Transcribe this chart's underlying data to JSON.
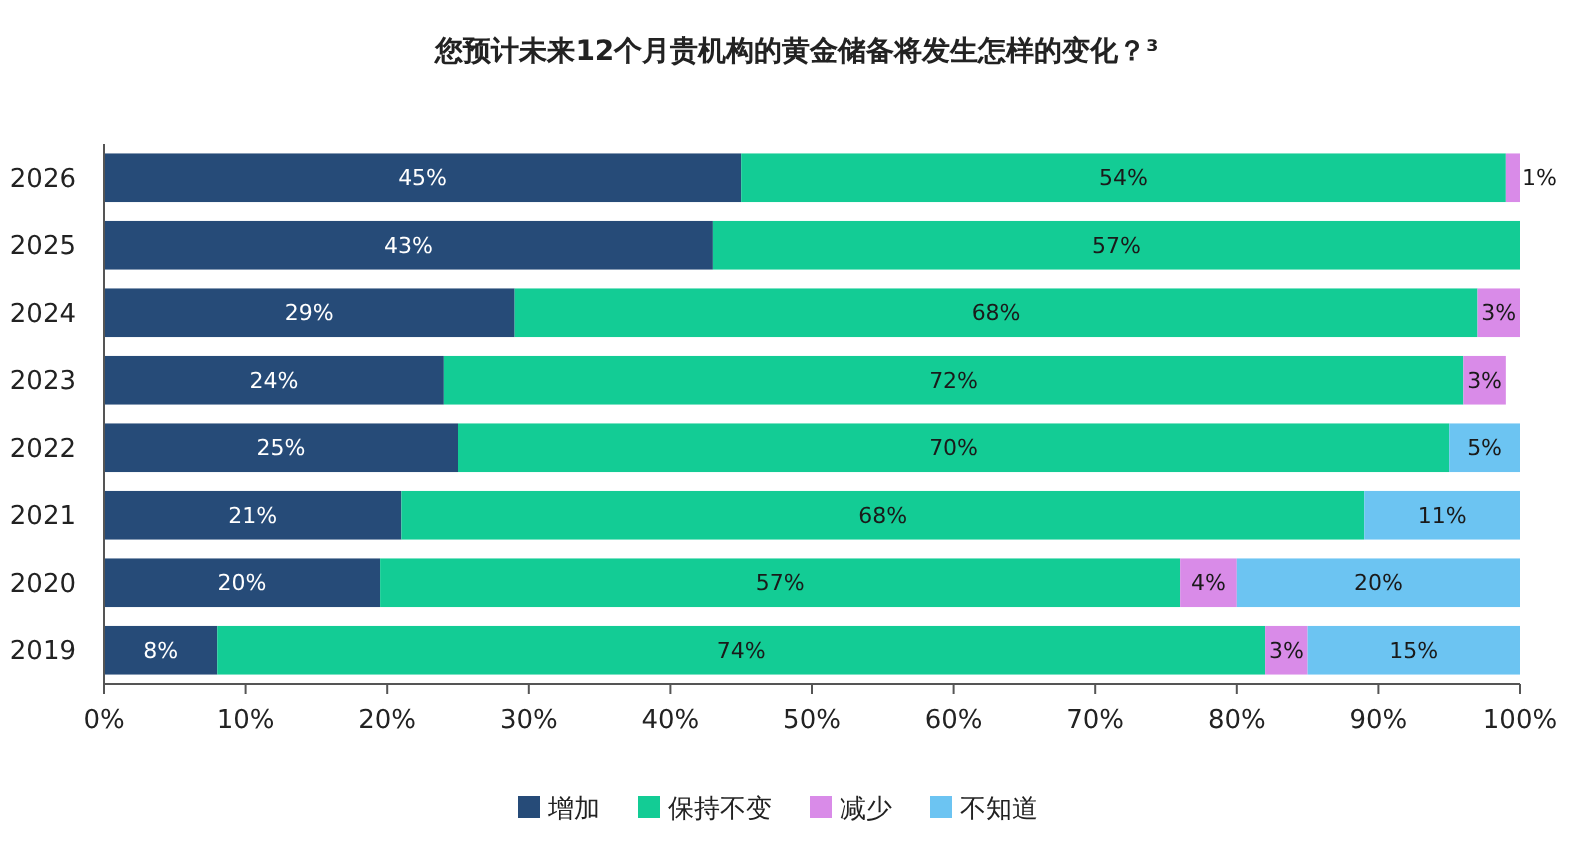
{
  "chart_data": {
    "type": "bar",
    "orientation": "horizontal",
    "stacked": true,
    "title": "您预计未来12个月贵机构的黄金储备将发生怎样的变化？³",
    "categories": [
      "2026",
      "2025",
      "2024",
      "2023",
      "2022",
      "2021",
      "2020",
      "2019"
    ],
    "series": [
      {
        "name": "增加",
        "color": "#264b78",
        "values": [
          45,
          43,
          29,
          24,
          25,
          21,
          19.5,
          8
        ],
        "value_labels": [
          "45%",
          "43%",
          "29%",
          "24%",
          "25%",
          "21%",
          "20%",
          "8%"
        ]
      },
      {
        "name": "保持不变",
        "color": "#13cc95",
        "values": [
          54,
          57,
          68,
          72,
          70,
          68,
          56.5,
          74
        ],
        "value_labels": [
          "54%",
          "57%",
          "68%",
          "72%",
          "70%",
          "68%",
          "57%",
          "74%"
        ]
      },
      {
        "name": "减少",
        "color": "#d98be8",
        "values": [
          1,
          null,
          3,
          3,
          null,
          null,
          4,
          3
        ],
        "value_labels": [
          "1%",
          null,
          "3%",
          "3%",
          null,
          null,
          "4%",
          "3%"
        ]
      },
      {
        "name": "不知道",
        "color": "#6cc4f2",
        "values": [
          null,
          null,
          null,
          null,
          5,
          11,
          20,
          15
        ],
        "value_labels": [
          null,
          null,
          null,
          null,
          "5%",
          "11%",
          "20%",
          "15%"
        ]
      }
    ],
    "xlim": [
      0,
      100
    ],
    "xticks": [
      {
        "value": 0,
        "label": "0%"
      },
      {
        "value": 10,
        "label": "10%"
      },
      {
        "value": 20,
        "label": "20%"
      },
      {
        "value": 30,
        "label": "30%"
      },
      {
        "value": 40,
        "label": "40%"
      },
      {
        "value": 50,
        "label": "50%"
      },
      {
        "value": 60,
        "label": "60%"
      },
      {
        "value": 70,
        "label": "70%"
      },
      {
        "value": 80,
        "label": "80%"
      },
      {
        "value": 90,
        "label": "90%"
      },
      {
        "value": 100,
        "label": "100%"
      }
    ],
    "legend": "bottom"
  }
}
